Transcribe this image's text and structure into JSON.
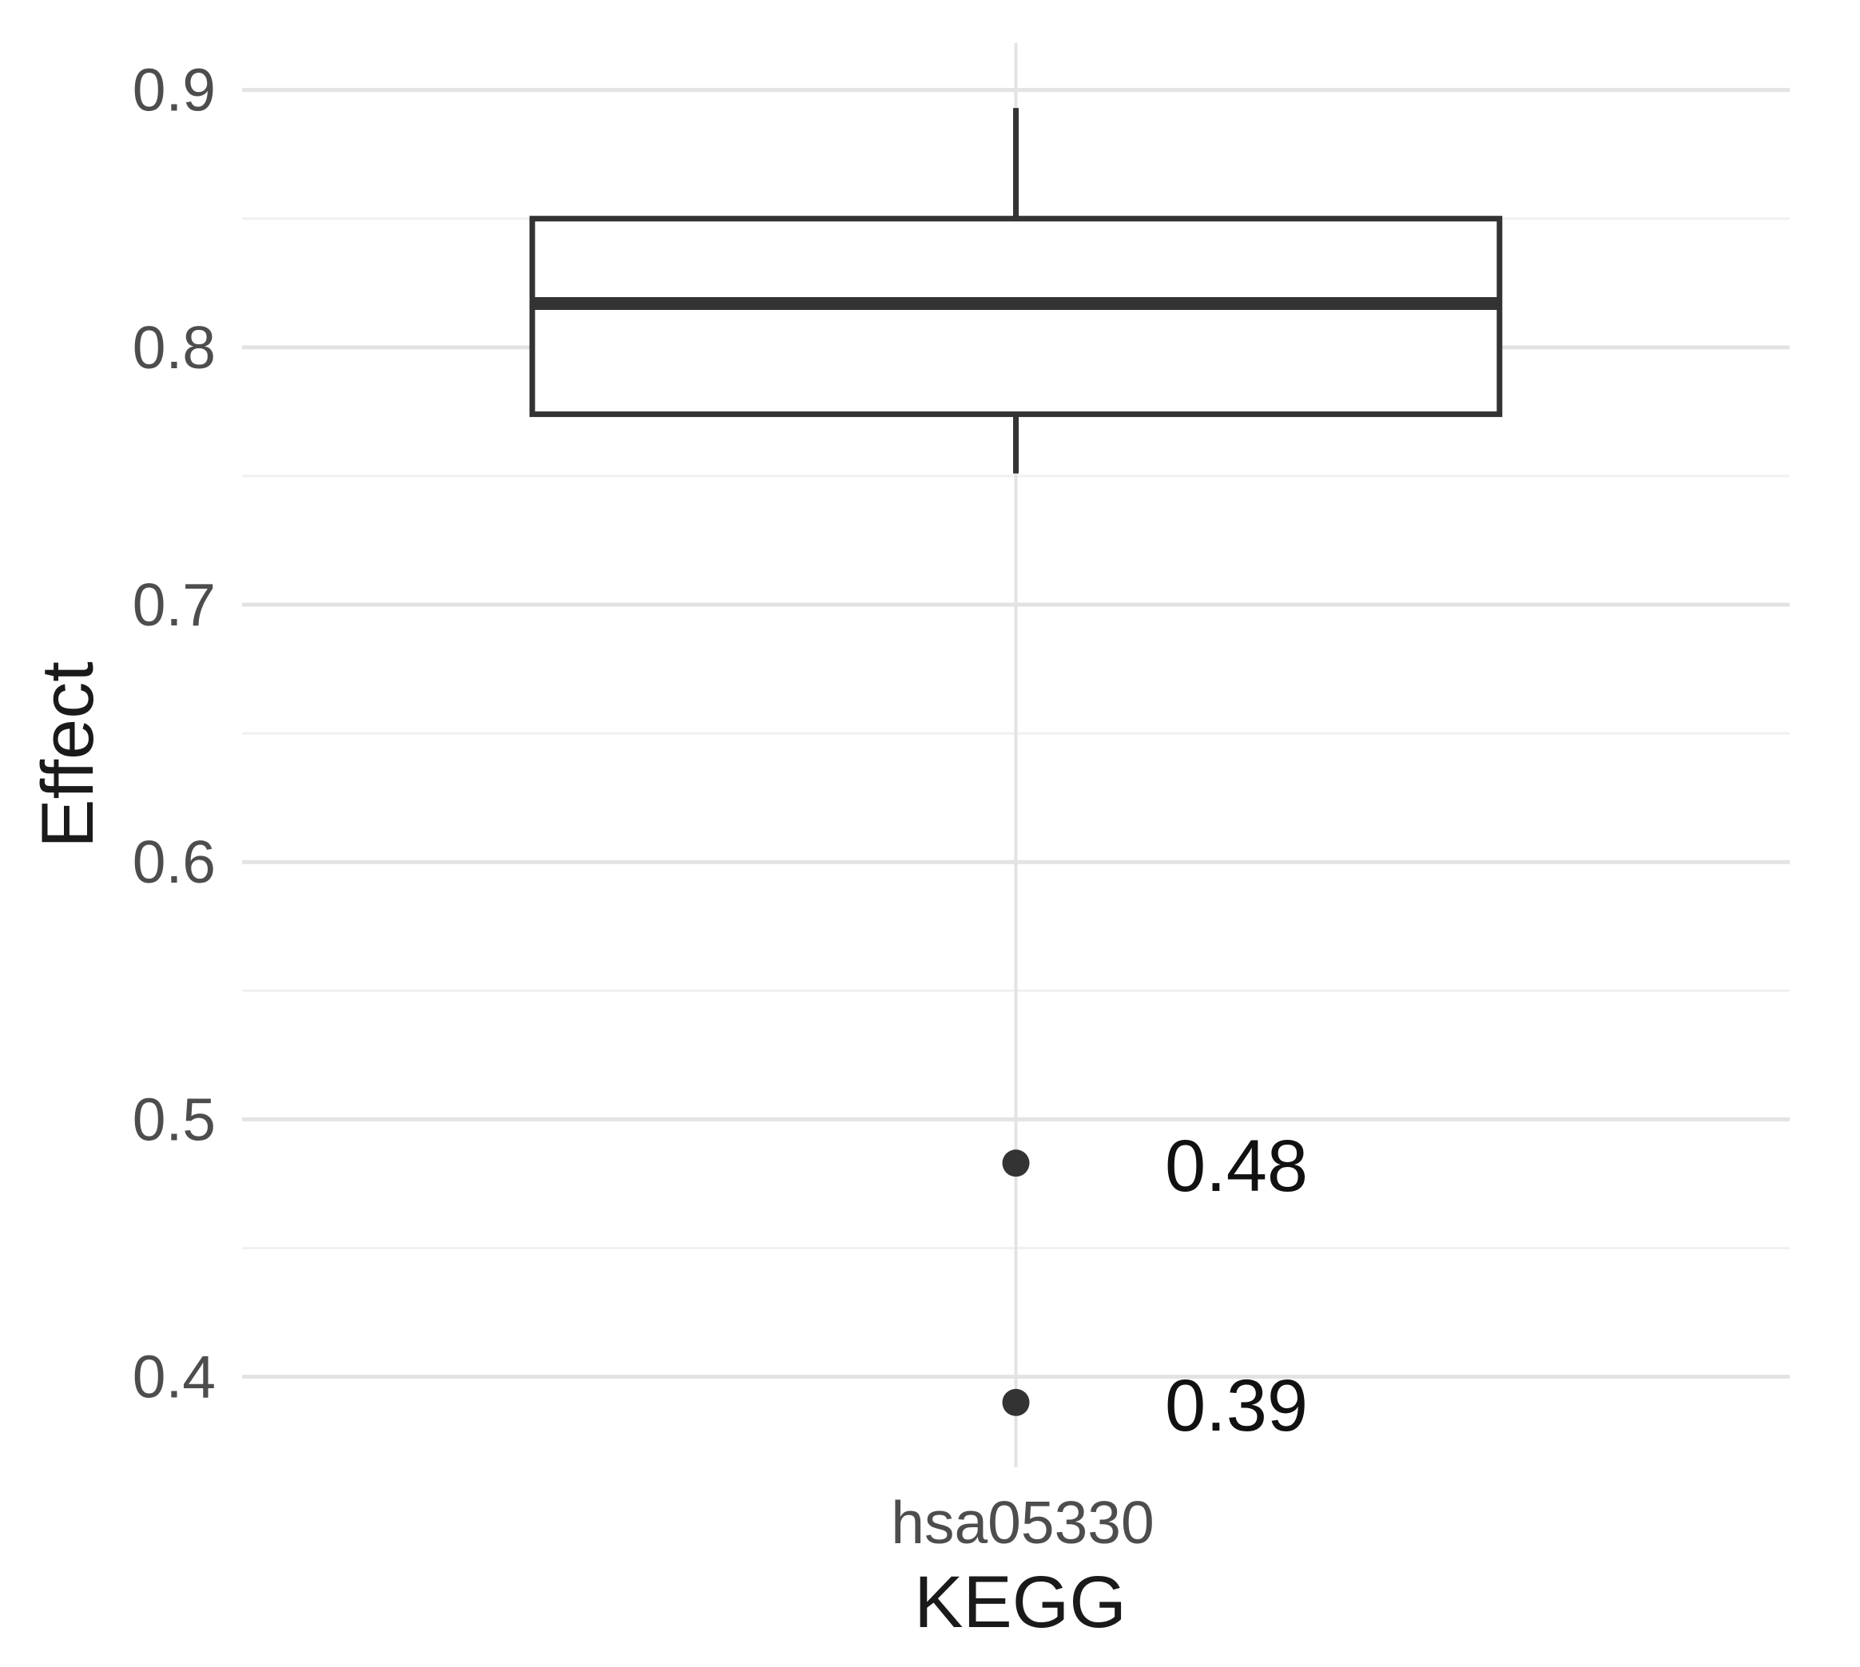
{
  "figure": {
    "background": "#ffffff"
  },
  "chart_data": {
    "type": "boxplot",
    "orientation": "vertical",
    "title": "",
    "xlabel": "KEGG",
    "ylabel": "Effect",
    "categories": [
      "hsa05330"
    ],
    "series": [
      {
        "category": "hsa05330",
        "whisker_low": 0.751,
        "q1": 0.774,
        "median": 0.817,
        "q3": 0.85,
        "whisker_high": 0.893,
        "outliers": [
          {
            "value": 0.483,
            "label": "0.48"
          },
          {
            "value": 0.39,
            "label": "0.39"
          }
        ]
      }
    ],
    "y_axis": {
      "label": "Effect",
      "ticks": [
        0.4,
        0.5,
        0.6,
        0.7,
        0.8,
        0.9
      ],
      "tick_labels": [
        "0.4",
        "0.5",
        "0.6",
        "0.7",
        "0.8",
        "0.9"
      ],
      "minor_ticks": [
        0.45,
        0.55,
        0.65,
        0.75,
        0.85
      ],
      "range": [
        0.3648,
        0.9182
      ],
      "grid": true
    },
    "x_axis": {
      "label": "KEGG",
      "tick_labels": [
        "hsa05330"
      ]
    },
    "legend": "none",
    "style": {
      "box_stroke": "#333333",
      "box_fill": "#ffffff",
      "grid_major": "#e3e3e3",
      "grid_minor": "#f1f1f1",
      "axis_text_color": "#4d4d4d",
      "axis_title_color": "#1a1a1a",
      "outlier_label_color": "#111111",
      "outlier_point_color": "#333333",
      "background": "#ffffff"
    }
  }
}
